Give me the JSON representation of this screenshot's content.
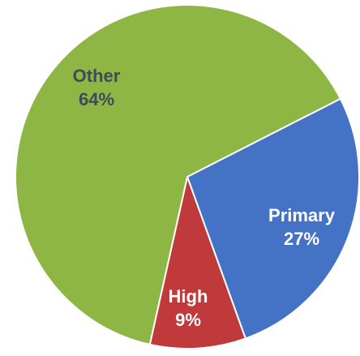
{
  "chart_data": {
    "type": "pie",
    "slices": [
      {
        "label": "Primary",
        "value": 27,
        "pct_label": "27%",
        "color": "#4472C4",
        "text_color": "#ffffff"
      },
      {
        "label": "High",
        "value": 9,
        "pct_label": "9%",
        "color": "#C0393B",
        "text_color": "#ffffff"
      },
      {
        "label": "Other",
        "value": 64,
        "pct_label": "64%",
        "color": "#8DB645",
        "text_color": "#3F4A5A"
      }
    ],
    "start_angle_deg": -27,
    "direction": "clockwise",
    "legend": "none"
  }
}
